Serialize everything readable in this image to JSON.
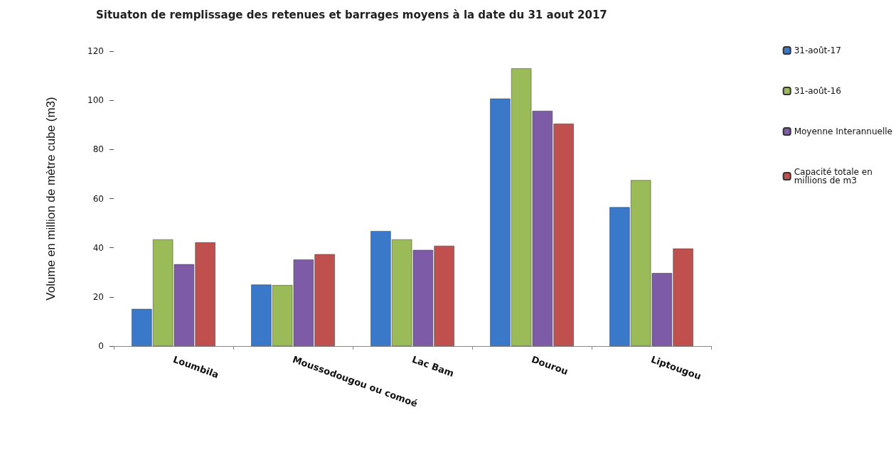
{
  "chart_data": {
    "type": "bar",
    "title": "Situaton de remplissage des retenues et barrages moyens à la date du 31 aout 2017",
    "ylabel": "Volume en million de mètre cube (m3)",
    "categories": [
      "Loumbila",
      "Moussodougou ou comoé",
      "Lac Bam",
      "Dourou",
      "Liptougou"
    ],
    "series": [
      {
        "name": "31-août-17",
        "color": "#3a78c9",
        "values": [
          15.1,
          25.0,
          46.8,
          100.7,
          56.5
        ]
      },
      {
        "name": "31-août-16",
        "color": "#9bbb59",
        "values": [
          43.4,
          24.8,
          43.4,
          113.0,
          67.5
        ]
      },
      {
        "name": "Moyenne Interannuelle",
        "color": "#7d5ba6",
        "values": [
          33.3,
          35.2,
          39.1,
          95.7,
          29.7
        ]
      },
      {
        "name": "Capacité totale en millions de m3",
        "color": "#c0504d",
        "values": [
          42.2,
          37.4,
          40.8,
          90.5,
          39.7
        ]
      }
    ],
    "ylim": [
      0,
      120
    ],
    "yticks": [
      0,
      20,
      40,
      60,
      80,
      100,
      120
    ],
    "grid": false,
    "legend": "right"
  }
}
